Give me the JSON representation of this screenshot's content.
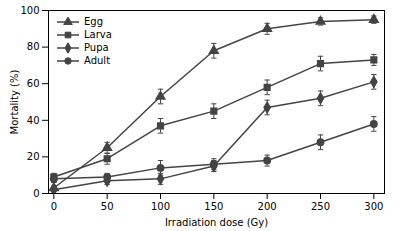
{
  "chart_data": {
    "type": "line",
    "x": [
      0,
      50,
      100,
      150,
      200,
      250,
      300
    ],
    "series": [
      {
        "name": "Egg",
        "color": "#444444",
        "marker": "triangle",
        "values": [
          3,
          25,
          53,
          78,
          90,
          94,
          95
        ],
        "yerr": [
          1,
          3,
          4,
          4,
          3,
          2,
          2
        ]
      },
      {
        "name": "Larva",
        "color": "#444444",
        "marker": "square",
        "values": [
          9,
          19,
          37,
          45,
          58,
          71,
          73
        ],
        "yerr": [
          2,
          3,
          4,
          4,
          4,
          4,
          3
        ]
      },
      {
        "name": "Pupa",
        "color": "#444444",
        "marker": "diamond",
        "values": [
          2,
          7,
          8,
          15,
          47,
          52,
          61
        ],
        "yerr": [
          1,
          2,
          3,
          3,
          4,
          4,
          4
        ]
      },
      {
        "name": "Adult",
        "color": "#444444",
        "marker": "circle",
        "values": [
          8,
          9,
          14,
          16,
          18,
          28,
          38
        ],
        "yerr": [
          2,
          2,
          4,
          3,
          3,
          4,
          4
        ]
      }
    ],
    "xlabel": "Irradiation dose (Gy)",
    "ylabel": "Mortality (%)",
    "xlim": [
      -5,
      310
    ],
    "ylim": [
      0,
      100
    ],
    "xticks": [
      0,
      50,
      100,
      150,
      200,
      250,
      300
    ],
    "yticks": [
      0,
      20,
      40,
      60,
      80,
      100
    ],
    "legend": "upper left"
  }
}
